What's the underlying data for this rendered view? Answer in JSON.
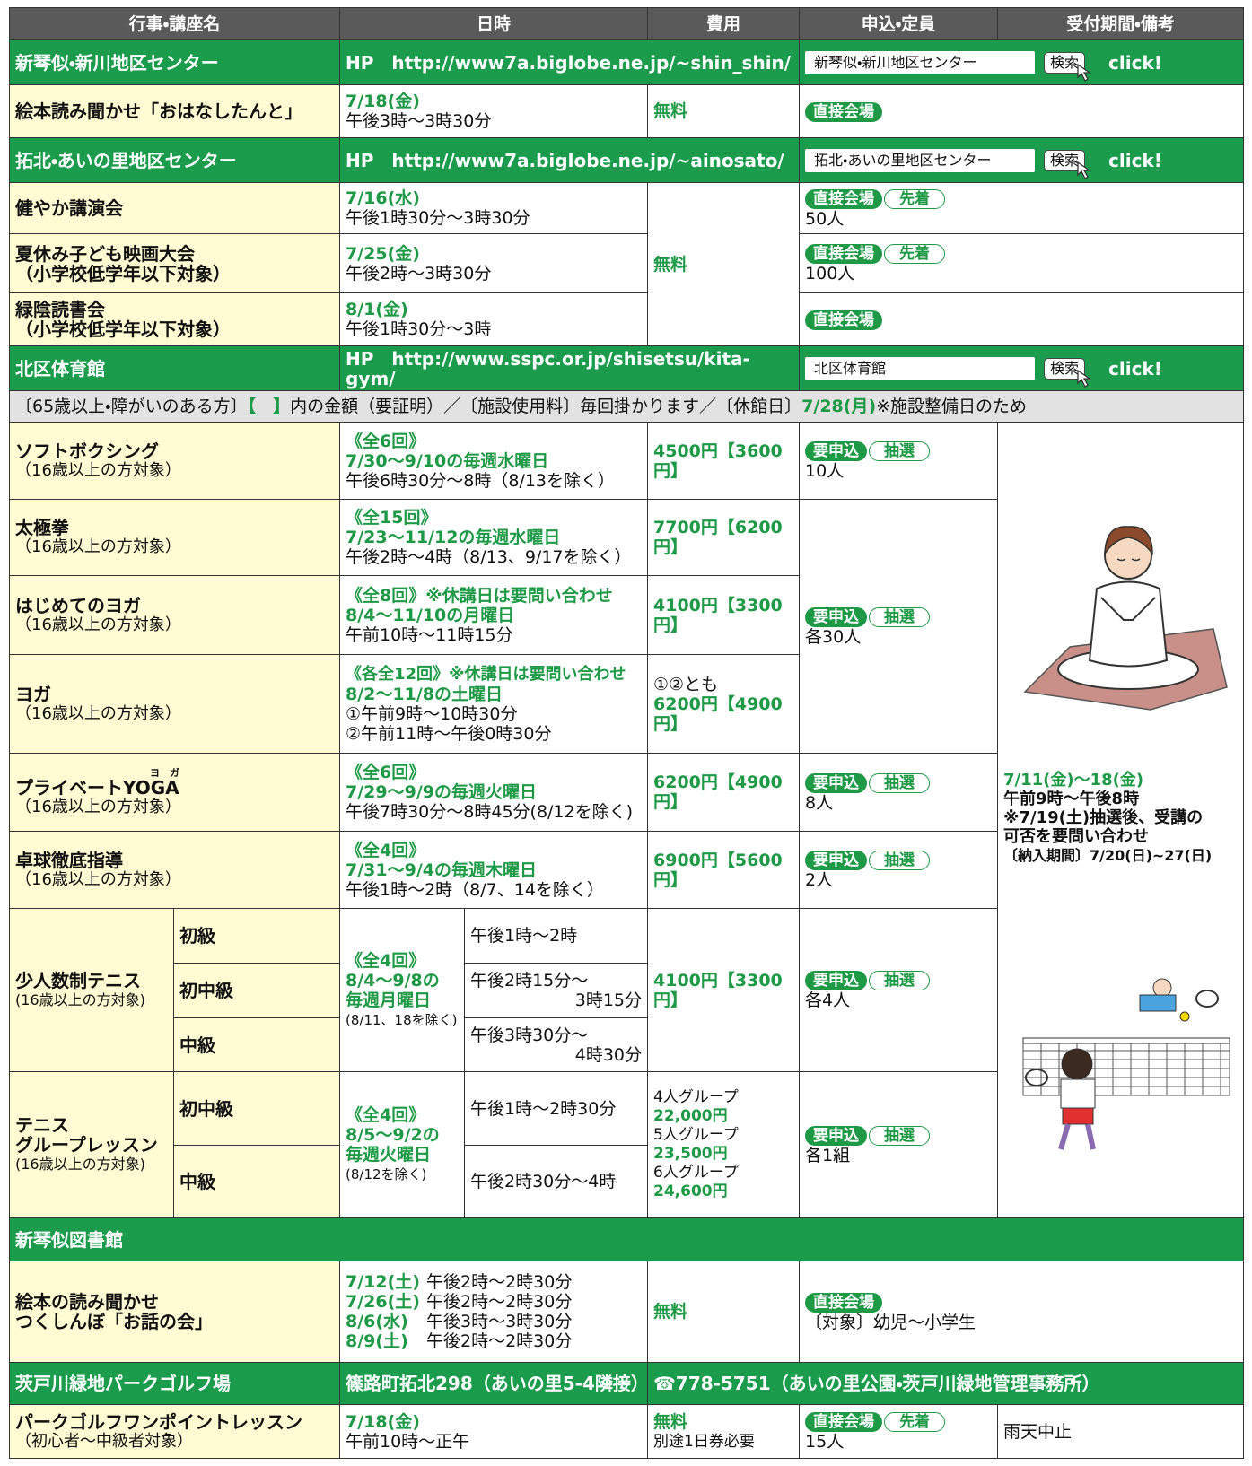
{
  "table": {
    "header": [
      "行事・講座名",
      "日時",
      "費用",
      "申込・定員",
      "受付期間・備考"
    ],
    "rows": [
      {
        "name": "新琴似・新川地区センター",
        "hp": "HP　http://www7a.biglobe.ne.jp/~shin_shin/",
        "search": "新琴似・新川地区センター",
        "button": "検索",
        "click": "click!"
      },
      {
        "name": "絵本読み聞かせ「おはなしたんと」",
        "date": "7/18(金)",
        "time": "午後3時～3時30分",
        "fee": "無料",
        "badges": [
          "直接会場"
        ]
      },
      {
        "name": "拓北・あいの里地区センター",
        "hp": "HP　http://www7a.biglobe.ne.jp/~ainosato/",
        "search": "拓北・あいの里地区センター",
        "button": "検索",
        "click": "click!"
      },
      {
        "name": "健やか講演会",
        "date": "7/16(水)",
        "time": "午後1時30分～3時30分",
        "fee": "無料",
        "badges": [
          "直接会場",
          "先着"
        ],
        "capacity": "50人"
      },
      {
        "name": "夏休み子ども映画大会",
        "note": "（小学校低学年以下対象）",
        "date": "7/25(金)",
        "time": "午後2時～3時30分",
        "badges": [
          "直接会場",
          "先着"
        ],
        "capacity": "100人"
      },
      {
        "name": "緑陰読書会",
        "note": "（小学校低学年以下対象）",
        "date": "8/1(金)",
        "time": "午後1時30分～3時",
        "badges": [
          "直接会場"
        ]
      },
      {
        "name": "北区体育館",
        "hp": "HP　http://www.sspc.or.jp/shisetsu/kita-gym/",
        "search": "北区体育館",
        "button": "検索",
        "click": "click!"
      },
      {
        "notice": [
          "〔65歳以上・障がいのある方〕",
          "【　】",
          "内の金額（要証明）／〔施設使用料〕毎回掛かります／〔休館日〕",
          "7/28(月)",
          "※施設整備日のため"
        ]
      },
      {
        "name": "ソフトボクシング",
        "note": "（16歳以上の方対象）",
        "schedule": [
          "《全6回》",
          "7/30～9/10の毎週水曜日",
          "午後6時30分～8時（8/13を除く）"
        ],
        "fee": "4500円【3600円】",
        "badges": [
          "要申込",
          "抽選"
        ],
        "capacity": "10人"
      },
      {
        "name": "太極拳",
        "note": "（16歳以上の方対象）",
        "schedule": [
          "《全15回》",
          "7/23～11/12の毎週水曜日",
          "午後2時～4時（8/13、9/17を除く）"
        ],
        "fee": "7700円【6200円】",
        "badges": [
          "要申込",
          "抽選"
        ],
        "capacity": "各30人"
      },
      {
        "name": "はじめてのヨガ",
        "note": "（16歳以上の方対象）",
        "schedule": [
          "《全8回》※休講日は要問い合わせ",
          "8/4～11/10の月曜日",
          "午前10時～11時15分"
        ],
        "fee": "4100円【3300円】"
      },
      {
        "name": "ヨガ",
        "note": "（16歳以上の方対象）",
        "schedule": [
          "《各全12回》※休講日は要問い合わせ",
          "8/2～11/8の土曜日",
          "①午前9時～10時30分",
          "②午前11時～午後0時30分"
        ],
        "fee_note": "①②とも",
        "fee": "6200円【4900円】"
      },
      {
        "name": "プライベートYOGA",
        "ruby": "ヨ　ガ",
        "note": "（16歳以上の方対象）",
        "schedule": [
          "《全6回》",
          "7/29～9/9の毎週火曜日",
          "午後7時30分～8時45分(8/12を除く)"
        ],
        "fee": "6200円【4900円】",
        "badges": [
          "要申込",
          "抽選"
        ],
        "capacity": "8人"
      },
      {
        "name": "卓球徹底指導",
        "note": "（16歳以上の方対象）",
        "schedule": [
          "《全4回》",
          "7/31～9/4の毎週木曜日",
          "午後1時～2時（8/7、14を除く）"
        ],
        "fee": "6900円【5600円】",
        "badges": [
          "要申込",
          "抽選"
        ],
        "capacity": "2人"
      },
      {
        "name": "少人数制テニス",
        "note": "(16歳以上の方対象)",
        "levels": [
          "初級",
          "初中級",
          "中級"
        ],
        "schedule": [
          "《全4回》",
          "8/4～9/8の",
          "毎週月曜日",
          "(8/11、18を除く)"
        ],
        "times": [
          [
            "午後1時～2時"
          ],
          [
            "午後2時15分～",
            "3時15分"
          ],
          [
            "午後3時30分～",
            "4時30分"
          ]
        ],
        "fee": "4100円【3300円】",
        "badges": [
          "要申込",
          "抽選"
        ],
        "capacity": "各4人"
      },
      {
        "name": [
          "テニス",
          "グループレッスン"
        ],
        "note": "(16歳以上の方対象)",
        "levels": [
          "初中級",
          "中級"
        ],
        "schedule": [
          "《全4回》",
          "8/5～9/2の",
          "毎週火曜日",
          "(8/12を除く)"
        ],
        "times": [
          "午後1時～2時30分",
          "午後2時30分～4時"
        ],
        "fee": [
          "4人グループ",
          "22,000円",
          "5人グループ",
          "23,500円",
          "6人グループ",
          "24,600円"
        ],
        "badges": [
          "要申込",
          "抽選"
        ],
        "capacity": "各1組"
      },
      {
        "name": "新琴似図書館"
      },
      {
        "name": [
          "絵本の読み聞かせ",
          "つくしんぼ「お話の会」"
        ],
        "sessions": [
          {
            "date": "7/12(土)",
            "time": "午後2時～2時30分"
          },
          {
            "date": "7/26(土)",
            "time": "午後2時～2時30分"
          },
          {
            "date": "8/6(水)",
            "time": "午後3時～3時30分"
          },
          {
            "date": "8/9(土)",
            "time": "午後2時～2時30分"
          }
        ],
        "fee": "無料",
        "badges": [
          "直接会場"
        ],
        "target": "〔対象〕幼児～小学生"
      },
      {
        "name": "茨戸川緑地パークゴルフ場",
        "address": "篠路町拓北298（あいの里5-4隣接）",
        "phone": "☎778-5751（あいの里公園・茨戸川緑地管理事務所）"
      },
      {
        "name": "パークゴルフワンポイントレッスン",
        "note": "（初心者～中級者対象）",
        "date": "7/18(金)",
        "time": "午前10時～正午",
        "fee": "無料",
        "fee_note": "別途1日券必要",
        "badges": [
          "直接会場",
          "先着"
        ],
        "capacity": "15人",
        "remarks": "雨天中止"
      }
    ],
    "reception_period": [
      "7/11(金)～18(金)",
      "午前9時～午後8時",
      "※7/19(土)抽選後、受講の",
      "可否を要問い合わせ",
      "〔納入期間〕7/20(日)~27(日)"
    ]
  }
}
